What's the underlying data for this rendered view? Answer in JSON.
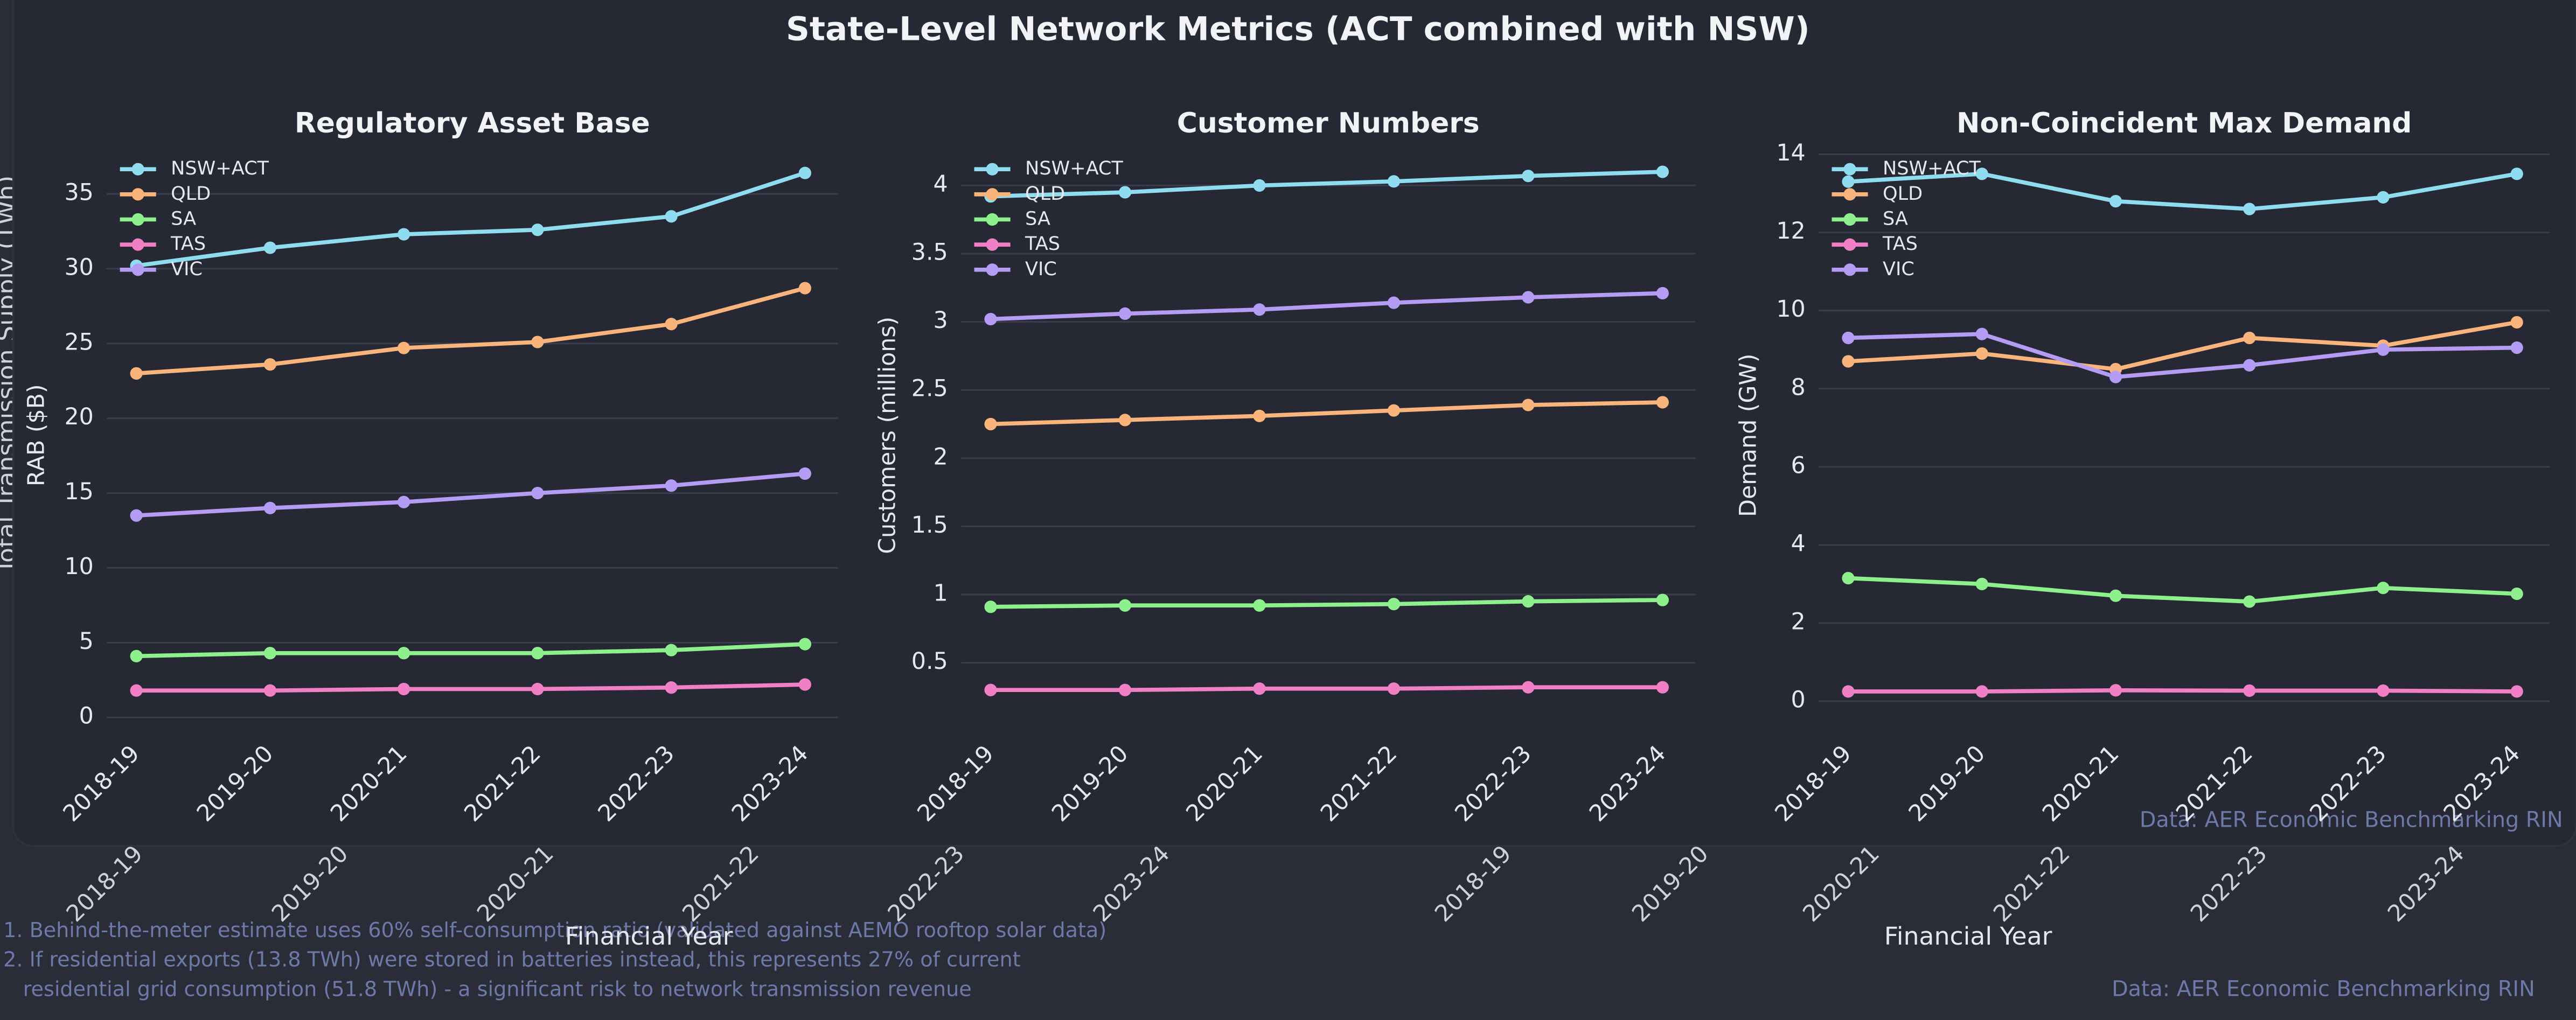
{
  "title": "State-Level Network Metrics (ACT combined with NSW)",
  "source": "Data: AER Economic Benchmarking RIN",
  "notes": [
    "1. Behind-the-meter estimate uses 60% self-consumption ratio (validated against AEMO rooftop solar data)",
    "2. If residential exports (13.8 TWh) were stored in batteries instead, this represents 27% of current",
    "residential grid consumption (51.8 TWh) - a significant risk to network transmission revenue"
  ],
  "background": {
    "ylabel": "Total Transmission Supply (TWh)",
    "xlabel": "Financial Year",
    "x_tick_labels": [
      "2018-19",
      "2019-20",
      "2020-21",
      "2021-22",
      "2022-23",
      "2023-24",
      "2018-19",
      "2019-20",
      "2020-21",
      "2021-22",
      "2022-23",
      "2023-24"
    ]
  },
  "chart_data": [
    {
      "type": "line",
      "title": "Regulatory Asset Base",
      "ylabel": "RAB ($B)",
      "categories": [
        "2018-19",
        "2019-20",
        "2020-21",
        "2021-22",
        "2022-23",
        "2023-24"
      ],
      "series": [
        {
          "name": "NSW+ACT",
          "color": "#8fdcf0",
          "values": [
            30.2,
            31.4,
            32.3,
            32.6,
            33.5,
            36.4
          ]
        },
        {
          "name": "QLD",
          "color": "#f9b47c",
          "values": [
            23.0,
            23.6,
            24.7,
            25.1,
            26.3,
            28.7
          ]
        },
        {
          "name": "SA",
          "color": "#8ef08c",
          "values": [
            4.1,
            4.3,
            4.3,
            4.3,
            4.5,
            4.9
          ]
        },
        {
          "name": "TAS",
          "color": "#f07fc6",
          "values": [
            1.8,
            1.8,
            1.9,
            1.9,
            2.0,
            2.2
          ]
        },
        {
          "name": "VIC",
          "color": "#b49cf5",
          "values": [
            13.5,
            14.0,
            14.4,
            15.0,
            15.5,
            16.3
          ]
        }
      ],
      "ylim": [
        -0.9,
        38.3
      ],
      "yticks": [
        0,
        5,
        10,
        15,
        20,
        25,
        30,
        35
      ],
      "grid": true,
      "legend": "upper-left"
    },
    {
      "type": "line",
      "title": "Customer Numbers",
      "ylabel": "Customers (millions)",
      "categories": [
        "2018-19",
        "2019-20",
        "2020-21",
        "2021-22",
        "2022-23",
        "2023-24"
      ],
      "series": [
        {
          "name": "NSW+ACT",
          "color": "#8fdcf0",
          "values": [
            3.92,
            3.95,
            4.0,
            4.03,
            4.07,
            4.1
          ]
        },
        {
          "name": "QLD",
          "color": "#f9b47c",
          "values": [
            2.25,
            2.28,
            2.31,
            2.35,
            2.39,
            2.41
          ]
        },
        {
          "name": "SA",
          "color": "#8ef08c",
          "values": [
            0.91,
            0.92,
            0.92,
            0.93,
            0.95,
            0.96
          ]
        },
        {
          "name": "TAS",
          "color": "#f07fc6",
          "values": [
            0.3,
            0.3,
            0.31,
            0.31,
            0.32,
            0.32
          ]
        },
        {
          "name": "VIC",
          "color": "#b49cf5",
          "values": [
            3.02,
            3.06,
            3.09,
            3.14,
            3.18,
            3.21
          ]
        }
      ],
      "ylim": [
        0.0,
        4.3
      ],
      "yticks": [
        0.5,
        1.0,
        1.5,
        2.0,
        2.5,
        3.0,
        3.5,
        4.0
      ],
      "grid": true,
      "legend": "upper-left"
    },
    {
      "type": "line",
      "title": "Non-Coincident Max Demand",
      "ylabel": "Demand (GW)",
      "categories": [
        "2018-19",
        "2019-20",
        "2020-21",
        "2021-22",
        "2022-23",
        "2023-24"
      ],
      "series": [
        {
          "name": "NSW+ACT",
          "color": "#8fdcf0",
          "values": [
            13.3,
            13.5,
            12.8,
            12.6,
            12.9,
            13.5
          ]
        },
        {
          "name": "QLD",
          "color": "#f9b47c",
          "values": [
            8.7,
            8.9,
            8.5,
            9.3,
            9.1,
            9.7
          ]
        },
        {
          "name": "SA",
          "color": "#8ef08c",
          "values": [
            3.15,
            3.0,
            2.7,
            2.55,
            2.9,
            2.75
          ]
        },
        {
          "name": "TAS",
          "color": "#f07fc6",
          "values": [
            0.25,
            0.25,
            0.28,
            0.27,
            0.27,
            0.25
          ]
        },
        {
          "name": "VIC",
          "color": "#b49cf5",
          "values": [
            9.3,
            9.4,
            8.3,
            8.6,
            9.0,
            9.05
          ]
        }
      ],
      "ylim": [
        -0.76,
        14.25
      ],
      "yticks": [
        0,
        2,
        4,
        6,
        8,
        10,
        12,
        14
      ],
      "grid": true,
      "legend": "upper-left"
    }
  ]
}
